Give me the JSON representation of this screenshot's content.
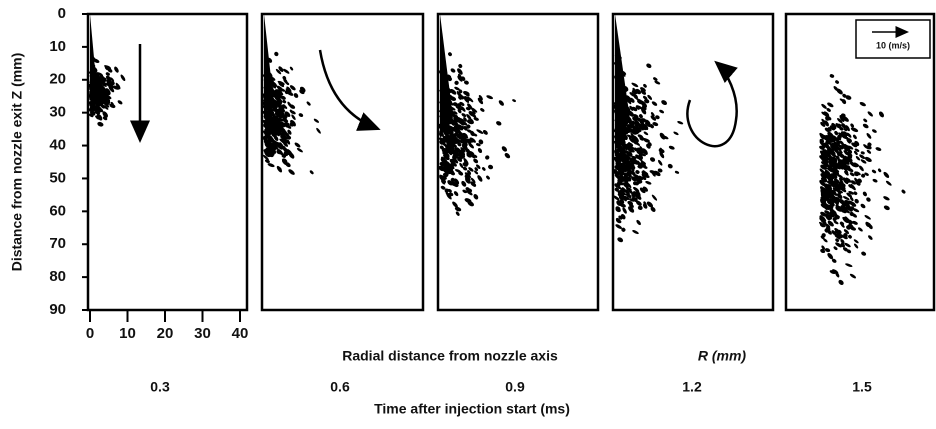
{
  "chart_data": {
    "type": "spray-panels",
    "ylabel": "Distance from nozzle exit Z (mm)",
    "xlabel": "Radial distance from nozzle axis",
    "xlabel_symbol": "R (mm)",
    "footer": "Time after injection start (ms)",
    "legend": "10 (m/s)",
    "ylim": [
      0,
      90
    ],
    "yticks": [
      0,
      10,
      20,
      30,
      40,
      50,
      60,
      70,
      80,
      90
    ],
    "xlim": [
      0,
      40
    ],
    "xticks": [
      0,
      10,
      20,
      30,
      40
    ],
    "panels": [
      {
        "time": 0.3
      },
      {
        "time": 0.6
      },
      {
        "time": 0.9
      },
      {
        "time": 1.2
      },
      {
        "time": 1.5
      }
    ]
  }
}
